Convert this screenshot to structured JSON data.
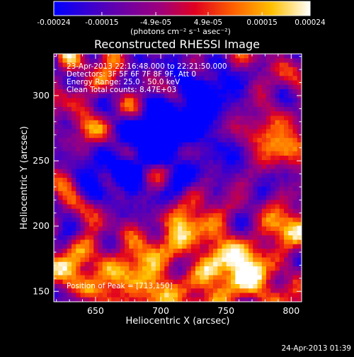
{
  "chart_data": {
    "type": "heatmap",
    "title": "Reconstructed RHESSI Image",
    "xlabel": "Heliocentric X (arcsec)",
    "ylabel": "Heliocentric Y (arcsec)",
    "xlim": [
      618,
      808
    ],
    "ylim": [
      142,
      332
    ],
    "x_ticks": [
      650,
      700,
      750,
      800
    ],
    "y_ticks": [
      150,
      200,
      250,
      300
    ],
    "x_tick_labels": [
      "650",
      "700",
      "750",
      "800"
    ],
    "y_tick_labels": [
      "150",
      "200",
      "250",
      "300"
    ],
    "colorbar": {
      "min": -0.00024,
      "max": 0.00024,
      "colormap": "blue-purple-red-orange-yellow-white",
      "ticks": [
        -0.00024,
        -0.00015,
        -4.9e-05,
        4.9e-05,
        0.00015,
        0.00024
      ],
      "tick_labels": [
        "-0.00024",
        "-0.00015",
        "-4.9e-05",
        "4.9e-05",
        "0.00015",
        "0.00024"
      ],
      "unit_label": "(photons cm⁻² s⁻¹ asec⁻²)"
    },
    "annotations": [
      "23-Apr-2013 22:16:48.000 to 22:21:50.000",
      "Detectors: 3F 5F 6F 7F 8F 9F, Att 0",
      "Energy Range: 25.0 - 50.0 keV",
      "Clean    Total counts: 8.47E+03"
    ],
    "peak_label": "Position of Peak = [713,150]",
    "peak_position": [
      713,
      150
    ],
    "timestamp": "24-Apr-2013 01:39",
    "grid": false,
    "legend": "none"
  }
}
